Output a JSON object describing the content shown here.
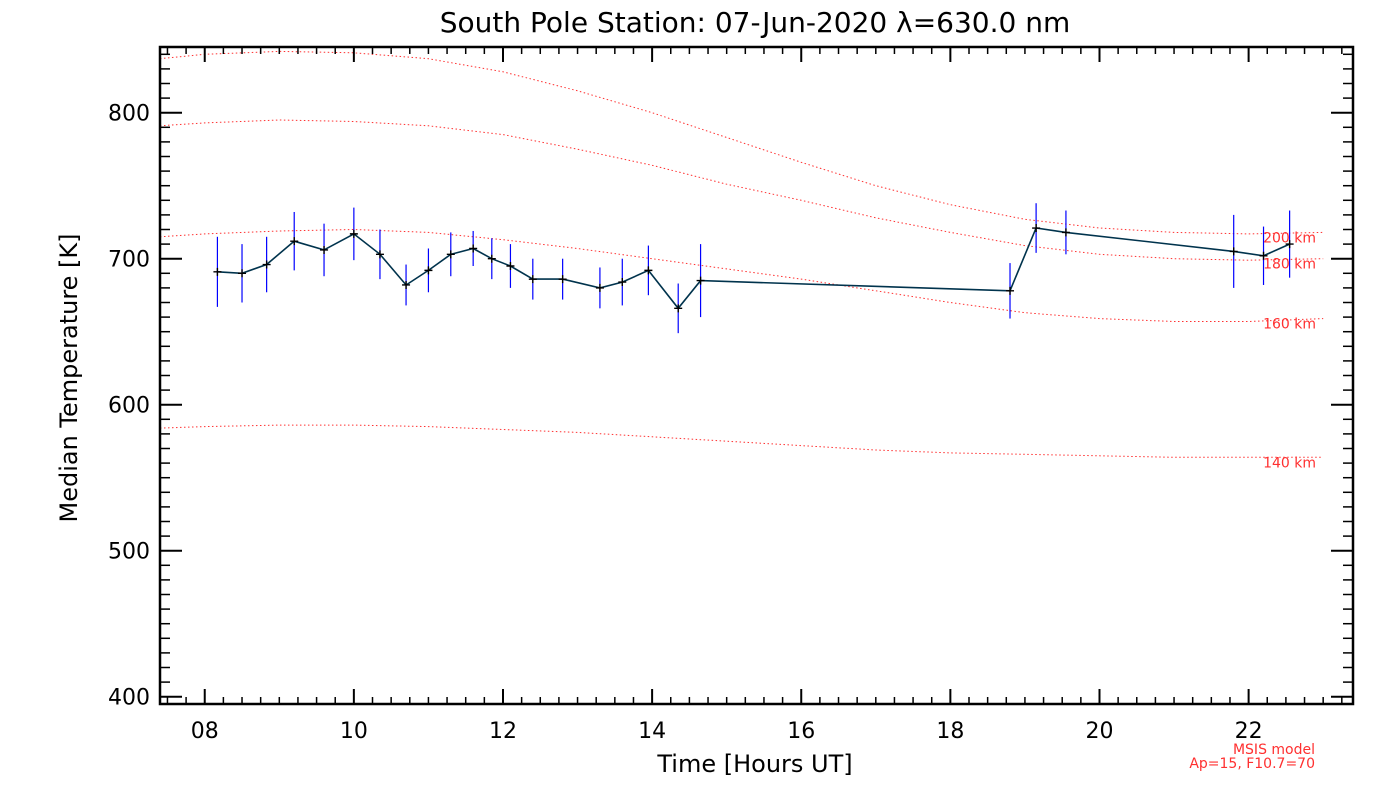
{
  "chart_data": {
    "type": "line",
    "title": "South Pole Station: 07-Jun-2020 λ=630.0 nm",
    "xlabel": "Time [Hours UT]",
    "ylabel": "Median Temperature [K]",
    "xlim": [
      7.4,
      23.4
    ],
    "ylim": [
      395,
      845
    ],
    "x_ticks": [
      8,
      10,
      12,
      14,
      16,
      18,
      20,
      22
    ],
    "x_tick_labels": [
      "08",
      "10",
      "12",
      "14",
      "16",
      "18",
      "20",
      "22"
    ],
    "y_ticks": [
      400,
      500,
      600,
      700,
      800
    ],
    "y_tick_labels": [
      "400",
      "500",
      "600",
      "700",
      "800"
    ],
    "colors": {
      "series_line": "#00334d",
      "error_bar": "#0000ff",
      "model": "#ff3030",
      "axes": "#000000"
    },
    "series": [
      {
        "name": "Median Temperature",
        "x": [
          8.17,
          8.5,
          8.83,
          9.2,
          9.6,
          10.0,
          10.35,
          10.7,
          11.0,
          11.3,
          11.6,
          11.85,
          12.1,
          12.4,
          12.8,
          13.3,
          13.6,
          13.95,
          14.35,
          14.65,
          18.8,
          19.15,
          19.55,
          21.8,
          22.2,
          22.55
        ],
        "y": [
          691,
          690,
          696,
          712,
          706,
          717,
          703,
          682,
          692,
          703,
          707,
          700,
          695,
          686,
          686,
          680,
          684,
          692,
          666,
          685,
          678,
          721,
          718,
          705,
          702,
          710
        ],
        "err": [
          24,
          20,
          19,
          20,
          18,
          18,
          17,
          14,
          15,
          15,
          12,
          14,
          15,
          14,
          14,
          14,
          16,
          17,
          17,
          25,
          19,
          17,
          15,
          25,
          20,
          23
        ]
      }
    ],
    "model": {
      "name": "MSIS model",
      "params": "Ap=15, F10.7=70",
      "curves": [
        {
          "label": "140 km",
          "x": [
            7.4,
            8,
            9,
            10,
            11,
            12,
            13,
            14,
            15,
            16,
            17,
            18,
            19,
            20,
            21,
            22,
            23
          ],
          "y": [
            584,
            585,
            586,
            586,
            585,
            583,
            581,
            578,
            575,
            572,
            569,
            567,
            566,
            565,
            564,
            564,
            564
          ]
        },
        {
          "label": "160 km",
          "x": [
            7.4,
            8,
            9,
            10,
            11,
            12,
            13,
            14,
            15,
            16,
            17,
            18,
            19,
            20,
            21,
            22,
            23
          ],
          "y": [
            715,
            717,
            719,
            720,
            718,
            713,
            707,
            700,
            693,
            686,
            678,
            670,
            663,
            659,
            657,
            657,
            659
          ]
        },
        {
          "label": "180 km",
          "x": [
            7.4,
            8,
            9,
            10,
            11,
            12,
            13,
            14,
            15,
            16,
            17,
            18,
            19,
            20,
            21,
            22,
            23
          ],
          "y": [
            791,
            793,
            795,
            794,
            791,
            785,
            775,
            764,
            751,
            740,
            728,
            718,
            709,
            703,
            700,
            699,
            700
          ]
        },
        {
          "label": "200 km",
          "x": [
            7.4,
            8,
            9,
            10,
            11,
            12,
            13,
            14,
            15,
            16,
            17,
            18,
            19,
            20,
            21,
            22,
            23
          ],
          "y": [
            837,
            840,
            842,
            841,
            837,
            828,
            815,
            800,
            783,
            766,
            750,
            737,
            727,
            721,
            718,
            717,
            718
          ]
        }
      ]
    }
  }
}
